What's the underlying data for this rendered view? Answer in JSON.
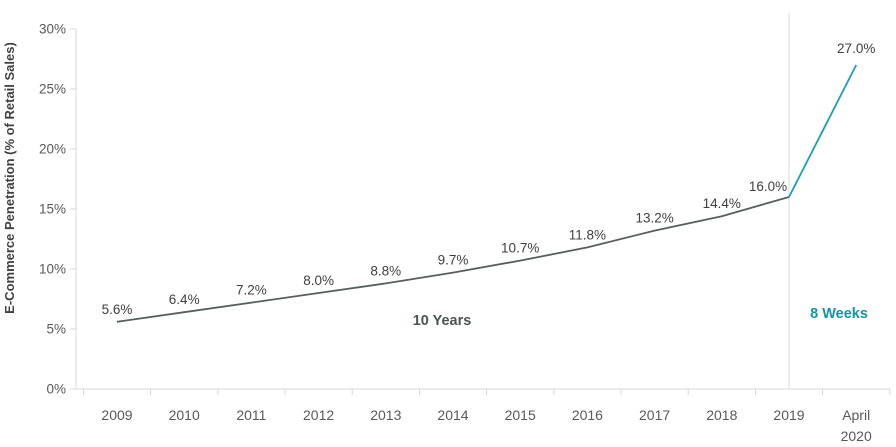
{
  "chart_data": {
    "type": "line",
    "title": "",
    "xlabel": "",
    "ylabel": "E-Commerce Penetration (% of Retail Sales)",
    "ylim": [
      0,
      30
    ],
    "ytick_step": 5,
    "ytick_labels": [
      "0%",
      "5%",
      "10%",
      "15%",
      "20%",
      "25%",
      "30%"
    ],
    "grid": false,
    "legend": "none",
    "categories": [
      "2009",
      "2010",
      "2011",
      "2012",
      "2013",
      "2014",
      "2015",
      "2016",
      "2017",
      "2018",
      "2019",
      "April 2020"
    ],
    "series": [
      {
        "name": "10 Years",
        "color": "#565f5b",
        "category_indices": [
          0,
          1,
          2,
          3,
          4,
          5,
          6,
          7,
          8,
          9,
          10
        ],
        "values": [
          5.6,
          6.4,
          7.2,
          8.0,
          8.8,
          9.7,
          10.7,
          11.8,
          13.2,
          14.4,
          16.0
        ],
        "labeled_points": [
          0,
          1,
          2,
          3,
          4,
          5,
          6,
          7,
          8,
          9,
          10
        ],
        "label_suffix": "%"
      },
      {
        "name": "8 Weeks",
        "color": "#18a0b2",
        "category_indices": [
          10,
          11
        ],
        "values": [
          16.0,
          27.0
        ],
        "labeled_points": [
          1
        ],
        "label_suffix": "%"
      }
    ],
    "data_label_color": "#404040",
    "axis_color": "#d9d9d9",
    "tick_label_color": "#595959",
    "separator_at_category": "2019",
    "annotations": [
      {
        "text": "10 Years",
        "color": "#4a5551"
      },
      {
        "text": "8 Weeks",
        "color": "#1295a7"
      }
    ]
  }
}
